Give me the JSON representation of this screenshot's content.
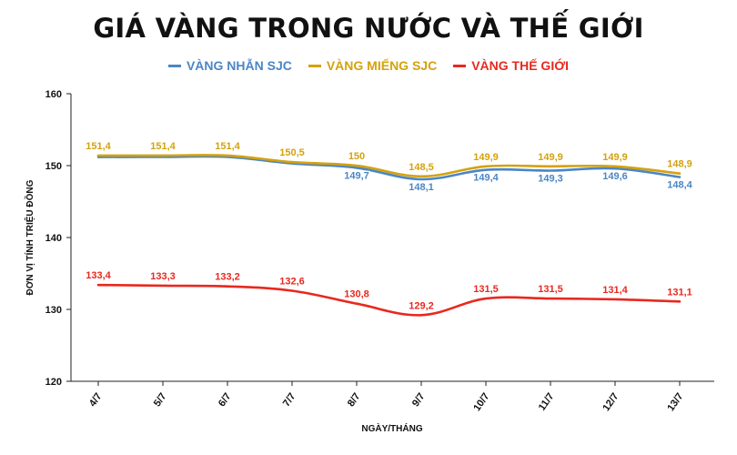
{
  "chart_data": {
    "type": "line",
    "title": "GIÁ VÀNG TRONG NƯỚC VÀ THẾ GIỚI",
    "xlabel": "NGÀY/THÁNG",
    "ylabel": "ĐƠN VỊ TÍNH TRIỆU ĐỒNG",
    "categories": [
      "4/7",
      "5/7",
      "6/7",
      "7/7",
      "8/7",
      "9/7",
      "10/7",
      "11/7",
      "12/7",
      "13/7"
    ],
    "ylim": [
      120,
      160
    ],
    "yticks": [
      120,
      130,
      140,
      150,
      160
    ],
    "grid": false,
    "legend_position": "top",
    "series": [
      {
        "name": "VÀNG NHẪN SJC",
        "color": "#4a86c5",
        "values": [
          151.2,
          151.2,
          151.2,
          150.3,
          149.7,
          148.1,
          149.4,
          149.3,
          149.6,
          148.4
        ],
        "labels": [
          "",
          "",
          "",
          "",
          "149,7",
          "148,1",
          "149,4",
          "149,3",
          "149,6",
          "148,4"
        ]
      },
      {
        "name": "VÀNG MIẾNG SJC",
        "color": "#d4a20c",
        "values": [
          151.4,
          151.4,
          151.4,
          150.5,
          150,
          148.5,
          149.9,
          149.9,
          149.9,
          148.9
        ],
        "labels": [
          "151,4",
          "151,4",
          "151,4",
          "150,5",
          "150",
          "148,5",
          "149,9",
          "149,9",
          "149,9",
          "148,9"
        ]
      },
      {
        "name": "VÀNG THẾ GIỚI",
        "color": "#e8281e",
        "values": [
          133.4,
          133.3,
          133.2,
          132.6,
          130.8,
          129.2,
          131.5,
          131.5,
          131.4,
          131.1
        ],
        "labels": [
          "133,4",
          "133,3",
          "133,2",
          "132,6",
          "130,8",
          "129,2",
          "131,5",
          "131,5",
          "131,4",
          "131,1"
        ]
      }
    ]
  }
}
